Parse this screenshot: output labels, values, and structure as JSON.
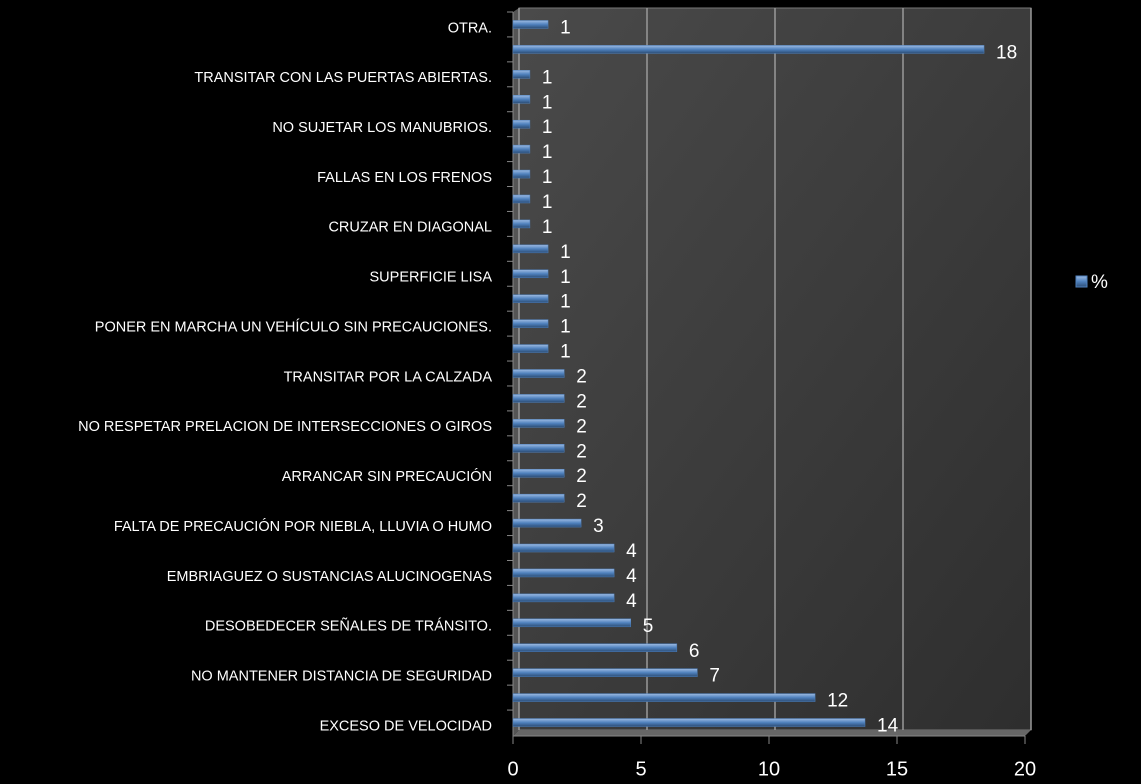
{
  "chart_data": {
    "type": "bar",
    "orientation": "horizontal",
    "categories": [
      "OTRA.",
      null,
      "TRANSITAR CON LAS PUERTAS ABIERTAS.",
      null,
      "NO SUJETAR LOS MANUBRIOS.",
      null,
      "FALLAS EN LOS FRENOS",
      null,
      "CRUZAR EN DIAGONAL",
      null,
      "SUPERFICIE LISA",
      null,
      "PONER EN MARCHA UN VEHÍCULO SIN PRECAUCIONES.",
      null,
      "TRANSITAR POR LA CALZADA",
      null,
      "NO RESPETAR PRELACION DE INTERSECCIONES O GIROS",
      null,
      "ARRANCAR SIN PRECAUCIÓN",
      null,
      "FALTA DE PRECAUCIÓN POR NIEBLA, LLUVIA O HUMO",
      null,
      "EMBRIAGUEZ O SUSTANCIAS ALUCINOGENAS",
      null,
      "DESOBEDECER SEÑALES DE TRÁNSITO.",
      null,
      "NO MANTENER DISTANCIA DE SEGURIDAD",
      null,
      "EXCESO DE VELOCIDAD"
    ],
    "series": [
      {
        "name": "%",
        "color": "#4f81bd",
        "values": [
          1.37,
          18.4,
          0.66,
          0.66,
          0.66,
          0.66,
          0.66,
          0.66,
          0.66,
          1.37,
          1.37,
          1.37,
          1.37,
          1.37,
          2.0,
          2.0,
          2.0,
          2.0,
          2.0,
          2.0,
          2.66,
          3.95,
          3.95,
          3.95,
          4.6,
          6.4,
          7.2,
          11.8,
          13.75
        ],
        "value_labels": [
          "1",
          "18",
          "1",
          "1",
          "1",
          "1",
          "1",
          "1",
          "1",
          "1",
          "1",
          "1",
          "1",
          "1",
          "2",
          "2",
          "2",
          "2",
          "2",
          "2",
          "3",
          "4",
          "4",
          "4",
          "5",
          "6",
          "7",
          "12",
          "14"
        ]
      }
    ],
    "xlim": [
      0,
      20
    ],
    "xticks": [
      0,
      5,
      10,
      15,
      20
    ],
    "grid": true,
    "legend": "right"
  }
}
